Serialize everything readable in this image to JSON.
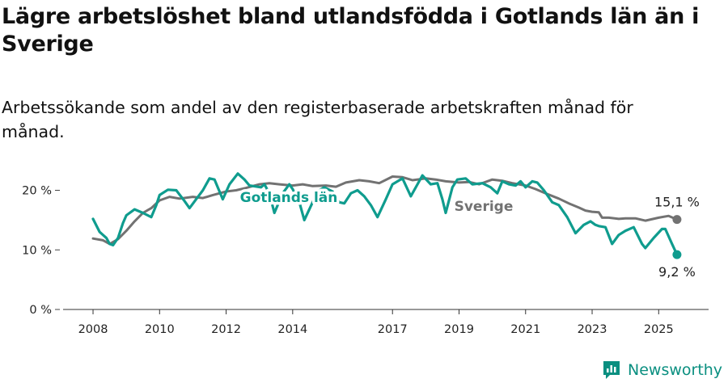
{
  "header": {
    "title": "Lägre arbetslöshet bland utlandsfödda i Gotlands län än i Sverige",
    "subtitle": "Arbetssökande som andel av den registerbaserade arbetskraften månad för månad."
  },
  "brand": {
    "name": "Newsworthy",
    "color": "#0a8f80"
  },
  "chart_data": {
    "type": "line",
    "title": "Lägre arbetslöshet bland utlandsfödda i Gotlands län än i Sverige",
    "subtitle": "Arbetssökande som andel av den registerbaserade arbetskraften månad för månad.",
    "x_tick_labels": [
      "2008",
      "2010",
      "2012",
      "2014",
      "2017",
      "2019",
      "2021",
      "2023",
      "2025"
    ],
    "x_tick_values": [
      2008,
      2010,
      2012,
      2014,
      2017,
      2019,
      2021,
      2023,
      2025
    ],
    "y_tick_labels": [
      "0 %",
      "10 %",
      "20 %"
    ],
    "y_tick_values": [
      0,
      10,
      20
    ],
    "xlim": [
      2007.1,
      2026.5
    ],
    "ylim": [
      0,
      24
    ],
    "grid": false,
    "series": [
      {
        "name": "Sverige",
        "color": "#727272",
        "end_label": "15,1 %",
        "points": [
          [
            2008.0,
            11.9
          ],
          [
            2008.3,
            11.6
          ],
          [
            2008.5,
            11.0
          ],
          [
            2008.75,
            11.8
          ],
          [
            2009.0,
            13.2
          ],
          [
            2009.25,
            14.8
          ],
          [
            2009.5,
            16.2
          ],
          [
            2009.75,
            17.0
          ],
          [
            2010.0,
            18.3
          ],
          [
            2010.3,
            18.9
          ],
          [
            2010.6,
            18.6
          ],
          [
            2011.0,
            18.9
          ],
          [
            2011.3,
            18.7
          ],
          [
            2011.6,
            19.2
          ],
          [
            2012.0,
            19.8
          ],
          [
            2012.3,
            20.0
          ],
          [
            2012.6,
            20.4
          ],
          [
            2013.0,
            21.0
          ],
          [
            2013.3,
            21.2
          ],
          [
            2013.6,
            21.0
          ],
          [
            2014.0,
            20.8
          ],
          [
            2014.3,
            21.0
          ],
          [
            2014.6,
            20.7
          ],
          [
            2015.0,
            20.8
          ],
          [
            2015.3,
            20.6
          ],
          [
            2015.6,
            21.3
          ],
          [
            2016.0,
            21.7
          ],
          [
            2016.3,
            21.5
          ],
          [
            2016.6,
            21.2
          ],
          [
            2017.0,
            22.3
          ],
          [
            2017.3,
            22.2
          ],
          [
            2017.6,
            21.7
          ],
          [
            2018.0,
            22.0
          ],
          [
            2018.3,
            21.8
          ],
          [
            2018.6,
            21.5
          ],
          [
            2019.0,
            21.3
          ],
          [
            2019.3,
            21.4
          ],
          [
            2019.6,
            21.0
          ],
          [
            2020.0,
            21.8
          ],
          [
            2020.3,
            21.6
          ],
          [
            2020.6,
            21.2
          ],
          [
            2021.0,
            20.8
          ],
          [
            2021.3,
            20.2
          ],
          [
            2021.6,
            19.5
          ],
          [
            2022.0,
            18.6
          ],
          [
            2022.3,
            17.8
          ],
          [
            2022.6,
            17.1
          ],
          [
            2022.8,
            16.6
          ],
          [
            2023.0,
            16.4
          ],
          [
            2023.2,
            16.3
          ],
          [
            2023.3,
            15.4
          ],
          [
            2023.5,
            15.4
          ],
          [
            2023.8,
            15.2
          ],
          [
            2024.0,
            15.3
          ],
          [
            2024.3,
            15.3
          ],
          [
            2024.6,
            14.9
          ],
          [
            2025.0,
            15.4
          ],
          [
            2025.3,
            15.7
          ],
          [
            2025.55,
            15.1
          ]
        ]
      },
      {
        "name": "Gotlands län",
        "color": "#0f9c8e",
        "end_label": "9,2 %",
        "points": [
          [
            2008.0,
            15.2
          ],
          [
            2008.2,
            13.0
          ],
          [
            2008.4,
            12.0
          ],
          [
            2008.5,
            11.0
          ],
          [
            2008.6,
            10.8
          ],
          [
            2008.75,
            12.0
          ],
          [
            2008.9,
            14.5
          ],
          [
            2009.0,
            15.8
          ],
          [
            2009.25,
            16.8
          ],
          [
            2009.5,
            16.2
          ],
          [
            2009.75,
            15.5
          ],
          [
            2009.9,
            17.5
          ],
          [
            2010.0,
            19.2
          ],
          [
            2010.25,
            20.1
          ],
          [
            2010.5,
            20.0
          ],
          [
            2010.75,
            18.2
          ],
          [
            2010.9,
            17.0
          ],
          [
            2011.1,
            18.5
          ],
          [
            2011.3,
            20.0
          ],
          [
            2011.5,
            22.0
          ],
          [
            2011.65,
            21.8
          ],
          [
            2011.9,
            18.5
          ],
          [
            2012.1,
            21.0
          ],
          [
            2012.35,
            22.8
          ],
          [
            2012.55,
            21.8
          ],
          [
            2012.7,
            20.8
          ],
          [
            2013.05,
            20.5
          ],
          [
            2013.15,
            21.0
          ],
          [
            2013.3,
            19.5
          ],
          [
            2013.45,
            16.2
          ],
          [
            2013.7,
            19.5
          ],
          [
            2013.9,
            21.0
          ],
          [
            2014.0,
            20.2
          ],
          [
            2014.2,
            18.0
          ],
          [
            2014.35,
            15.0
          ],
          [
            2014.6,
            18.0
          ],
          [
            2014.75,
            19.8
          ],
          [
            2014.95,
            20.5
          ],
          [
            2015.2,
            19.8
          ],
          [
            2015.4,
            18.0
          ],
          [
            2015.55,
            17.8
          ],
          [
            2015.75,
            19.5
          ],
          [
            2015.95,
            20.0
          ],
          [
            2016.15,
            19.0
          ],
          [
            2016.35,
            17.5
          ],
          [
            2016.55,
            15.5
          ],
          [
            2016.8,
            18.5
          ],
          [
            2017.0,
            21.0
          ],
          [
            2017.3,
            22.0
          ],
          [
            2017.55,
            19.0
          ],
          [
            2017.75,
            21.0
          ],
          [
            2017.9,
            22.5
          ],
          [
            2018.15,
            21.0
          ],
          [
            2018.35,
            21.2
          ],
          [
            2018.5,
            18.5
          ],
          [
            2018.6,
            16.2
          ],
          [
            2018.8,
            20.5
          ],
          [
            2018.95,
            21.8
          ],
          [
            2019.2,
            22.0
          ],
          [
            2019.4,
            21.0
          ],
          [
            2019.7,
            21.2
          ],
          [
            2019.95,
            20.5
          ],
          [
            2020.15,
            19.5
          ],
          [
            2020.3,
            21.5
          ],
          [
            2020.5,
            21.0
          ],
          [
            2020.7,
            20.8
          ],
          [
            2020.85,
            21.5
          ],
          [
            2021.0,
            20.5
          ],
          [
            2021.2,
            21.5
          ],
          [
            2021.35,
            21.3
          ],
          [
            2021.55,
            20.0
          ],
          [
            2021.8,
            18.0
          ],
          [
            2022.0,
            17.5
          ],
          [
            2022.25,
            15.5
          ],
          [
            2022.5,
            12.8
          ],
          [
            2022.75,
            14.2
          ],
          [
            2022.95,
            14.8
          ],
          [
            2023.1,
            14.2
          ],
          [
            2023.2,
            14.0
          ],
          [
            2023.4,
            13.8
          ],
          [
            2023.6,
            11.0
          ],
          [
            2023.8,
            12.5
          ],
          [
            2024.0,
            13.2
          ],
          [
            2024.25,
            13.8
          ],
          [
            2024.5,
            11.0
          ],
          [
            2024.6,
            10.3
          ],
          [
            2024.85,
            12.0
          ],
          [
            2025.1,
            13.5
          ],
          [
            2025.2,
            13.5
          ],
          [
            2025.4,
            11.0
          ],
          [
            2025.55,
            9.2
          ]
        ]
      }
    ]
  }
}
